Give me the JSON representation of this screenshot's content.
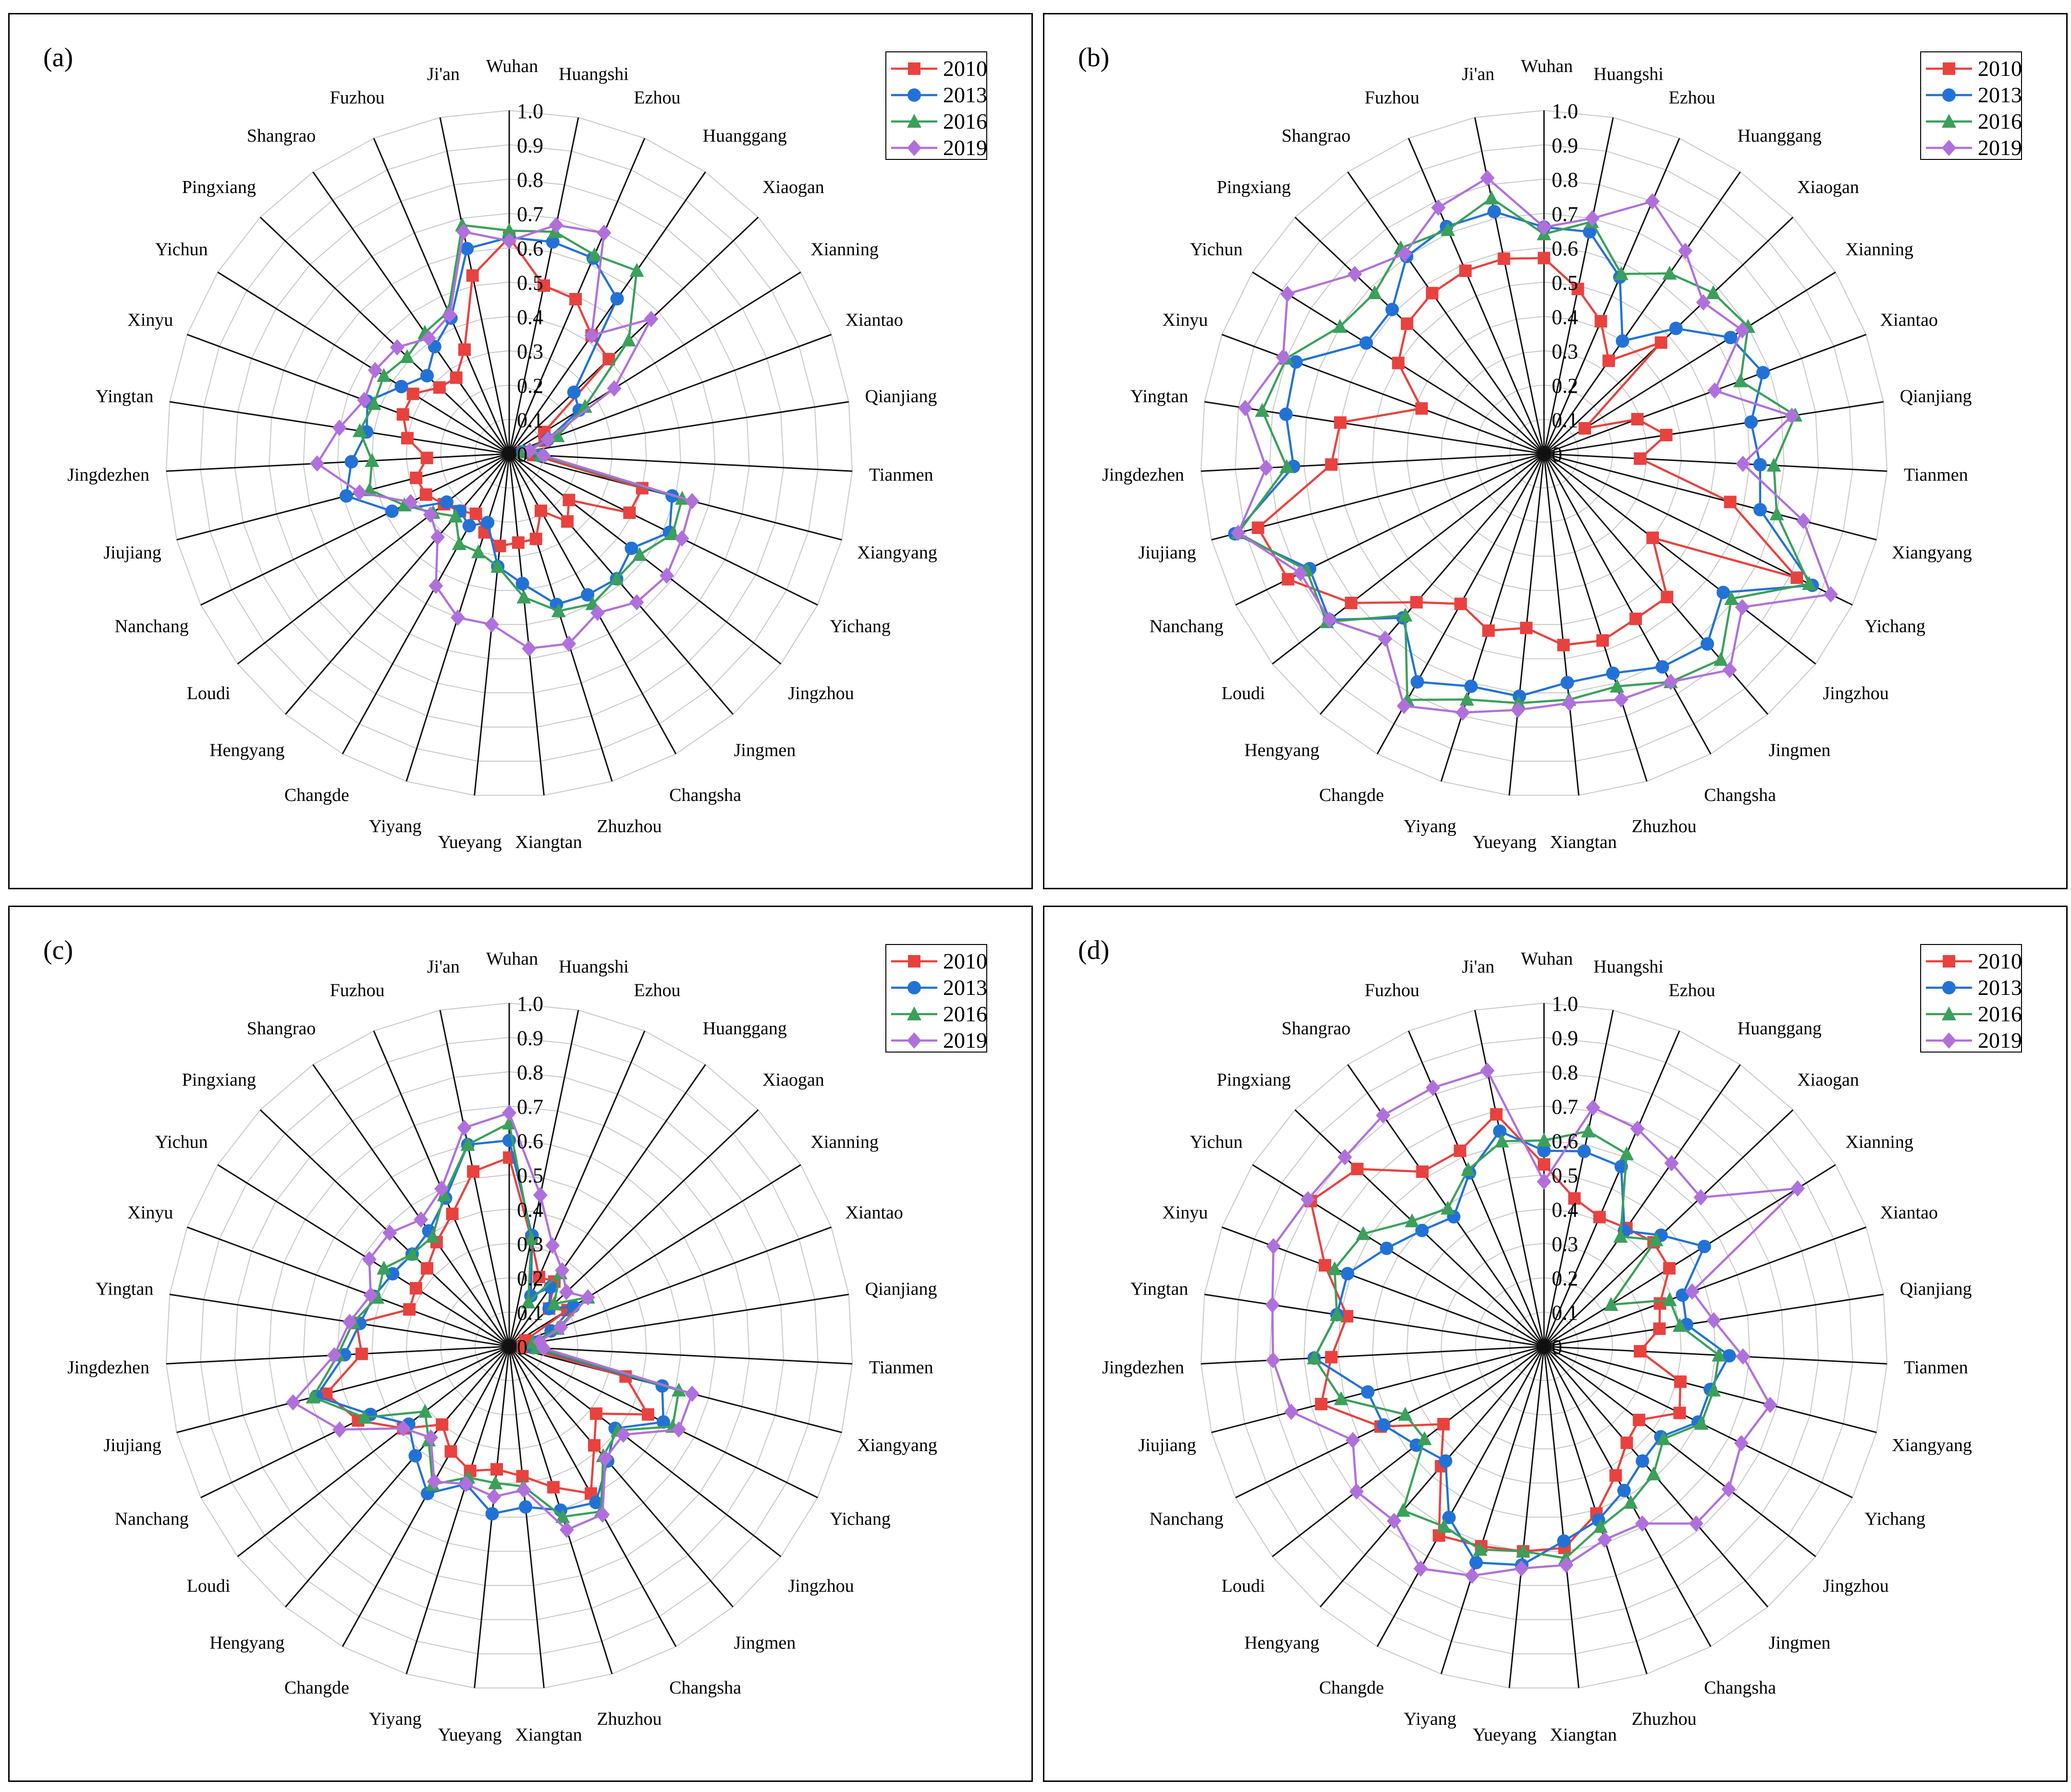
{
  "cities": [
    "Wuhan",
    "Huangshi",
    "Ezhou",
    "Huanggang",
    "Xiaogan",
    "Xianning",
    "Xiantao",
    "Qianjiang",
    "Tianmen",
    "Xiangyang",
    "Yichang",
    "Jingzhou",
    "Jingmen",
    "Changsha",
    "Zhuzhou",
    "Xiangtan",
    "Yueyang",
    "Yiyang",
    "Changde",
    "Hengyang",
    "Loudi",
    "Nanchang",
    "Jiujiang",
    "Jingdezhen",
    "Yingtan",
    "Xinyu",
    "Yichun",
    "Pingxiang",
    "Shangrao",
    "Fuzhou",
    "Ji'an"
  ],
  "axis_ticks": [
    "0",
    "0.1",
    "0.2",
    "0.3",
    "0.4",
    "0.5",
    "0.6",
    "0.7",
    "0.8",
    "0.9",
    "1.0"
  ],
  "series_styles": [
    {
      "name": "2010",
      "color": "#e8423f",
      "marker": "square"
    },
    {
      "name": "2013",
      "color": "#2272d6",
      "marker": "circle"
    },
    {
      "name": "2016",
      "color": "#3aa05a",
      "marker": "triangle"
    },
    {
      "name": "2019",
      "color": "#b070dc",
      "marker": "diamond"
    }
  ],
  "chart_data": [
    {
      "type": "radar",
      "label": "(a)",
      "categories_ref": "cities",
      "ylim": [
        0,
        1.0
      ],
      "legend": "top-right",
      "series": [
        {
          "name": "2010",
          "values": [
            0.63,
            0.5,
            0.49,
            0.42,
            0.4,
            0.12,
            0.11,
            0.04,
            0.07,
            0.4,
            0.39,
            0.22,
            0.26,
            0.19,
            0.26,
            0.26,
            0.27,
            0.24,
            0.2,
            0.22,
            0.24,
            0.27,
            0.28,
            0.24,
            0.3,
            0.33,
            0.33,
            0.28,
            0.27,
            0.33,
            0.53
          ]
        },
        {
          "name": "2013",
          "values": [
            0.63,
            0.63,
            0.62,
            0.55,
            0.26,
            0.24,
            0.12,
            0.04,
            0.09,
            0.49,
            0.52,
            0.45,
            0.48,
            0.47,
            0.46,
            0.38,
            0.33,
            0.21,
            0.24,
            0.22,
            0.23,
            0.38,
            0.49,
            0.46,
            0.42,
            0.44,
            0.37,
            0.33,
            0.38,
            0.43,
            0.61
          ]
        },
        {
          "name": "2016",
          "values": [
            0.65,
            0.66,
            0.63,
            0.65,
            0.48,
            0.26,
            0.15,
            0.04,
            0.09,
            0.52,
            0.53,
            0.48,
            0.48,
            0.5,
            0.48,
            0.42,
            0.33,
            0.3,
            0.3,
            0.24,
            0.28,
            0.34,
            0.42,
            0.4,
            0.44,
            0.42,
            0.43,
            0.41,
            0.43,
            0.45,
            0.68
          ]
        },
        {
          "name": "2019",
          "values": [
            0.62,
            0.68,
            0.7,
            0.42,
            0.57,
            0.36,
            0.12,
            0.06,
            0.1,
            0.55,
            0.56,
            0.58,
            0.57,
            0.53,
            0.58,
            0.57,
            0.5,
            0.5,
            0.44,
            0.32,
            0.29,
            0.32,
            0.45,
            0.56,
            0.5,
            0.45,
            0.46,
            0.45,
            0.41,
            0.44,
            0.66
          ]
        }
      ]
    },
    {
      "type": "radar",
      "label": "(b)",
      "categories_ref": "cities",
      "ylim": [
        0,
        1.0
      ],
      "legend": "top-right",
      "series": [
        {
          "name": "2010",
          "values": [
            0.57,
            0.49,
            0.42,
            0.33,
            0.47,
            0.14,
            0.29,
            0.36,
            0.28,
            0.56,
            0.82,
            0.4,
            0.55,
            0.55,
            0.57,
            0.56,
            0.51,
            0.54,
            0.5,
            0.57,
            0.71,
            0.83,
            0.86,
            0.62,
            0.6,
            0.38,
            0.5,
            0.55,
            0.57,
            0.58,
            0.58
          ]
        },
        {
          "name": "2013",
          "values": [
            0.66,
            0.66,
            0.56,
            0.4,
            0.53,
            0.64,
            0.68,
            0.61,
            0.63,
            0.65,
            0.87,
            0.66,
            0.73,
            0.71,
            0.67,
            0.67,
            0.71,
            0.71,
            0.76,
            0.63,
            0.79,
            0.76,
            0.93,
            0.73,
            0.76,
            0.77,
            0.61,
            0.61,
            0.7,
            0.72,
            0.72
          ]
        },
        {
          "name": "2016",
          "values": [
            0.64,
            0.69,
            0.57,
            0.64,
            0.68,
            0.7,
            0.61,
            0.74,
            0.67,
            0.7,
            0.86,
            0.69,
            0.79,
            0.76,
            0.71,
            0.72,
            0.73,
            0.75,
            0.82,
            0.62,
            0.8,
            0.77,
            0.92,
            0.75,
            0.83,
            0.8,
            0.7,
            0.68,
            0.73,
            0.71,
            0.76
          ]
        },
        {
          "name": "2019",
          "values": [
            0.66,
            0.7,
            0.8,
            0.72,
            0.64,
            0.68,
            0.53,
            0.73,
            0.58,
            0.78,
            0.93,
            0.73,
            0.83,
            0.76,
            0.75,
            0.73,
            0.75,
            0.79,
            0.84,
            0.71,
            0.79,
            0.79,
            0.92,
            0.81,
            0.88,
            0.81,
            0.88,
            0.76,
            0.71,
            0.78,
            0.82
          ]
        }
      ]
    },
    {
      "type": "radar",
      "label": "(c)",
      "categories_ref": "cities",
      "ylim": [
        0,
        1.0
      ],
      "legend": "top-right",
      "series": [
        {
          "name": "2010",
          "values": [
            0.55,
            0.32,
            0.22,
            0.23,
            0.16,
            0.2,
            0.05,
            0.05,
            0.04,
            0.35,
            0.45,
            0.32,
            0.38,
            0.49,
            0.43,
            0.38,
            0.36,
            0.38,
            0.35,
            0.3,
            0.39,
            0.49,
            0.55,
            0.43,
            0.45,
            0.31,
            0.32,
            0.33,
            0.37,
            0.42,
            0.52
          ]
        },
        {
          "name": "2013",
          "values": [
            0.6,
            0.33,
            0.16,
            0.21,
            0.16,
            0.22,
            0.13,
            0.08,
            0.07,
            0.46,
            0.5,
            0.39,
            0.44,
            0.52,
            0.5,
            0.47,
            0.49,
            0.42,
            0.49,
            0.42,
            0.37,
            0.45,
            0.58,
            0.48,
            0.44,
            0.42,
            0.4,
            0.39,
            0.41,
            0.47,
            0.6
          ]
        },
        {
          "name": "2016",
          "values": [
            0.65,
            0.32,
            0.14,
            0.26,
            0.18,
            0.27,
            0.15,
            0.07,
            0.08,
            0.51,
            0.53,
            0.4,
            0.42,
            0.55,
            0.52,
            0.41,
            0.4,
            0.4,
            0.46,
            0.36,
            0.31,
            0.47,
            0.59,
            0.5,
            0.46,
            0.41,
            0.43,
            0.39,
            0.39,
            0.48,
            0.6
          ]
        },
        {
          "name": "2019",
          "values": [
            0.68,
            0.45,
            0.32,
            0.27,
            0.23,
            0.27,
            0.16,
            0.09,
            0.1,
            0.55,
            0.55,
            0.42,
            0.43,
            0.56,
            0.56,
            0.42,
            0.44,
            0.42,
            0.45,
            0.35,
            0.39,
            0.55,
            0.65,
            0.51,
            0.47,
            0.43,
            0.48,
            0.48,
            0.45,
            0.5,
            0.65
          ]
        }
      ]
    },
    {
      "type": "radar",
      "label": "(d)",
      "categories_ref": "cities",
      "ylim": [
        0,
        1.0
      ],
      "legend": "top-right",
      "series": [
        {
          "name": "2010",
          "values": [
            0.53,
            0.44,
            0.41,
            0.42,
            0.44,
            0.43,
            0.36,
            0.34,
            0.28,
            0.41,
            0.44,
            0.35,
            0.37,
            0.43,
            0.51,
            0.59,
            0.6,
            0.61,
            0.63,
            0.46,
            0.37,
            0.53,
            0.67,
            0.62,
            0.58,
            0.68,
            0.8,
            0.75,
            0.62,
            0.62,
            0.69
          ]
        },
        {
          "name": "2013",
          "values": [
            0.57,
            0.58,
            0.57,
            0.41,
            0.47,
            0.55,
            0.43,
            0.42,
            0.54,
            0.5,
            0.5,
            0.43,
            0.44,
            0.48,
            0.53,
            0.57,
            0.64,
            0.66,
            0.57,
            0.44,
            0.47,
            0.52,
            0.53,
            0.67,
            0.61,
            0.61,
            0.54,
            0.49,
            0.46,
            0.55,
            0.64
          ]
        },
        {
          "name": "2016",
          "values": [
            0.6,
            0.64,
            0.61,
            0.39,
            0.45,
            0.23,
            0.39,
            0.4,
            0.51,
            0.51,
            0.51,
            0.44,
            0.49,
            0.52,
            0.55,
            0.62,
            0.6,
            0.62,
            0.6,
            0.63,
            0.44,
            0.45,
            0.61,
            0.67,
            0.61,
            0.65,
            0.62,
            0.53,
            0.49,
            0.56,
            0.61
          ]
        },
        {
          "name": "2019",
          "values": [
            0.48,
            0.71,
            0.69,
            0.65,
            0.63,
            0.87,
            0.46,
            0.5,
            0.58,
            0.68,
            0.64,
            0.68,
            0.68,
            0.59,
            0.59,
            0.64,
            0.65,
            0.7,
            0.74,
            0.67,
            0.69,
            0.62,
            0.76,
            0.79,
            0.8,
            0.84,
            0.81,
            0.8,
            0.82,
            0.82,
            0.82
          ]
        }
      ]
    }
  ]
}
